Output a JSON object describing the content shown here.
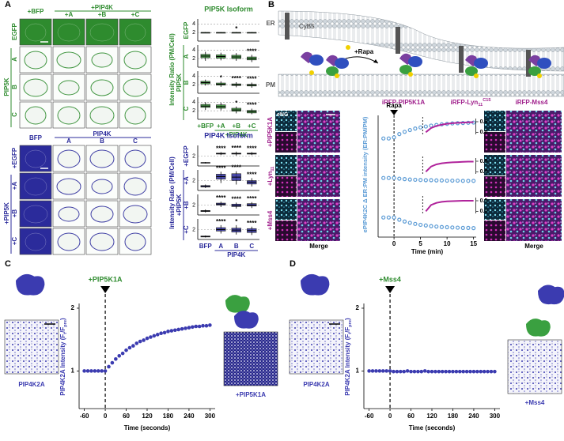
{
  "panel_a": {
    "label": "A",
    "top_images": {
      "columns": [
        "+BFP",
        "+A",
        "+B",
        "+C"
      ],
      "column_group": "+PIP4K",
      "rows": [
        "EGFP",
        "A",
        "B",
        "C"
      ],
      "row_group": "PIP5K"
    },
    "top_chart": {
      "type": "box",
      "title": "PIP5K Isoform",
      "ylabel": "Intensity Ratio (PM/Cell)",
      "categories": [
        "+BFP",
        "+A",
        "+B",
        "+C"
      ],
      "group_label": "+PIP4K",
      "row_group": "PIP5K",
      "ylim": [
        0,
        5
      ],
      "yticks": [
        2,
        4
      ],
      "color": "#2e8b2e",
      "rows": [
        {
          "name": "EGFP",
          "boxes": [
            [
              1.9,
              2,
              2,
              2,
              2.1
            ],
            [
              1.9,
              2,
              2,
              2,
              2.1
            ],
            [
              1.9,
              2,
              2,
              2,
              2.1
            ],
            [
              1.9,
              2,
              2,
              2,
              2.1
            ]
          ],
          "sig": [
            null,
            null,
            "*",
            null
          ]
        },
        {
          "name": "A",
          "boxes": [
            [
              1.5,
              2.2,
              2.6,
              3,
              3.6
            ],
            [
              1.6,
              2.1,
              2.5,
              2.9,
              3.4
            ],
            [
              1.5,
              2.0,
              2.4,
              2.8,
              3.3
            ],
            [
              1.2,
              1.7,
              2.0,
              2.4,
              2.9
            ]
          ],
          "sig": [
            null,
            null,
            null,
            "****"
          ]
        },
        {
          "name": "B",
          "boxes": [
            [
              1.8,
              2.2,
              2.5,
              2.8,
              3.2
            ],
            [
              1.5,
              1.9,
              2.1,
              2.4,
              2.8
            ],
            [
              1.4,
              1.8,
              2.0,
              2.2,
              2.6
            ],
            [
              1.3,
              1.7,
              1.9,
              2.1,
              2.5
            ]
          ],
          "sig": [
            null,
            "*",
            "****",
            "****"
          ]
        },
        {
          "name": "C",
          "boxes": [
            [
              2.2,
              2.8,
              3.1,
              3.5,
              4.0
            ],
            [
              2.1,
              2.6,
              3.0,
              3.4,
              3.9
            ],
            [
              1.4,
              1.9,
              2.2,
              2.6,
              3.0
            ],
            [
              1.2,
              1.5,
              1.8,
              2.1,
              2.5
            ]
          ],
          "sig": [
            null,
            null,
            "*",
            "****"
          ]
        }
      ]
    },
    "bottom_images": {
      "columns": [
        "BFP",
        "A",
        "B",
        "C"
      ],
      "column_group": "PIP4K",
      "rows": [
        "+EGFP",
        "+A",
        "+B",
        "+C"
      ],
      "row_group": "+PIP5K"
    },
    "bottom_chart": {
      "type": "box",
      "title": "PIP4K Isoform",
      "ylabel": "Intensity Ratio (PM/Cell)",
      "categories": [
        "BFP",
        "A",
        "B",
        "C"
      ],
      "group_label": "PIP4K",
      "row_group": "+PIP5K",
      "ylim": [
        0,
        4
      ],
      "yticks": [
        2
      ],
      "color": "#2b2b9b",
      "rows": [
        {
          "name": "+EGFP",
          "boxes": [
            [
              0.5,
              0.6,
              0.65,
              0.7,
              0.8
            ],
            [
              2.2,
              2.4,
              2.5,
              2.6,
              2.8
            ],
            [
              2.1,
              2.4,
              2.5,
              2.6,
              2.9
            ],
            [
              2.2,
              2.4,
              2.5,
              2.6,
              2.8
            ]
          ],
          "sig": [
            null,
            "****",
            "****",
            "****"
          ]
        },
        {
          "name": "+A",
          "boxes": [
            [
              0.5,
              0.7,
              0.8,
              1.0,
              1.2
            ],
            [
              1.5,
              2.3,
              2.8,
              3.3,
              3.8
            ],
            [
              1.2,
              2.0,
              2.7,
              3.4,
              3.9
            ],
            [
              0.8,
              1.3,
              1.7,
              2.0,
              2.5
            ]
          ],
          "sig": [
            null,
            "****",
            "****",
            "****"
          ]
        },
        {
          "name": "+B",
          "boxes": [
            [
              0.5,
              0.7,
              0.8,
              0.9,
              1.1
            ],
            [
              1.6,
              2.0,
              2.2,
              2.4,
              2.7
            ],
            [
              1.3,
              1.7,
              1.9,
              2.2,
              2.5
            ],
            [
              1.4,
              1.8,
              2.0,
              2.3,
              2.6
            ]
          ],
          "sig": [
            null,
            "****",
            "****",
            "****"
          ]
        },
        {
          "name": "+C",
          "boxes": [
            [
              0.4,
              0.5,
              0.6,
              0.7,
              0.8
            ],
            [
              1.2,
              1.7,
              2.0,
              2.4,
              2.9
            ],
            [
              1.0,
              1.5,
              1.9,
              2.3,
              2.9
            ],
            [
              0.9,
              1.4,
              1.8,
              2.2,
              2.6
            ]
          ],
          "sig": [
            null,
            "****",
            "*",
            "****"
          ]
        }
      ]
    }
  },
  "panel_b": {
    "label": "B",
    "diagram": {
      "er": "ER",
      "pm": "PM",
      "cyb5": "CyB5",
      "rapa": "+Rapa",
      "constructs": [
        [
          "iRFP-PIP5K1A"
        ],
        [
          "iRFP-Lyn",
          "11",
          "C15"
        ],
        [
          "iRFP-Mss4"
        ]
      ]
    },
    "channel_label": "eNG",
    "row_labels": [
      [
        "+PIP5K1A"
      ],
      [
        "+Lyn",
        "11"
      ],
      [
        "+Mss4"
      ]
    ],
    "merge_labels": [
      "Merge",
      "Merge"
    ],
    "chart": {
      "type": "line",
      "ylabel": "ePIP4K2C Δ ER:PM intensity (ER:PM/PM)",
      "xlabel": "Time (min)",
      "annotation": "Rapa",
      "color": "#5b9bd5",
      "inset_color": "#b0239b",
      "x": [
        -2,
        -1,
        0,
        1,
        2,
        3,
        4,
        5,
        6,
        7,
        8,
        9,
        10,
        11,
        12,
        13,
        14,
        15
      ],
      "xlim": [
        -3,
        15.5
      ],
      "xticks": [
        0,
        5,
        10,
        15
      ],
      "ylim": [
        -0.06,
        0.09
      ],
      "inset_x": [
        6,
        7,
        8,
        9,
        10,
        11,
        12,
        13,
        14,
        15
      ],
      "inset_ylim": [
        -0.1,
        0.65
      ],
      "inset_yticks": [
        0.5,
        {
          "value": 0,
          "label": "0.0"
        }
      ],
      "series": [
        {
          "values": [
            0,
            0,
            0.005,
            0.02,
            0.03,
            0.038,
            0.045,
            0.05,
            0.054,
            0.058,
            0.061,
            0.064,
            0.066,
            0.068,
            0.069,
            0.07,
            0.071,
            0.072
          ],
          "inset": [
            0,
            0.2,
            0.3,
            0.36,
            0.4,
            0.43,
            0.45,
            0.46,
            0.47,
            0.48
          ]
        },
        {
          "values": [
            0,
            0,
            0,
            -0.003,
            -0.005,
            -0.007,
            -0.008,
            -0.009,
            -0.01,
            -0.01,
            -0.011,
            -0.011,
            -0.012,
            -0.012,
            -0.012,
            -0.013,
            -0.013,
            -0.013
          ],
          "inset": [
            0,
            0.25,
            0.35,
            0.4,
            0.43,
            0.45,
            0.46,
            0.47,
            0.48,
            0.48
          ]
        },
        {
          "values": [
            0,
            0,
            0,
            -0.01,
            -0.018,
            -0.024,
            -0.029,
            -0.033,
            -0.036,
            -0.039,
            -0.041,
            -0.043,
            -0.044,
            -0.045,
            -0.046,
            -0.047,
            -0.047,
            -0.048
          ],
          "inset": [
            0,
            0.3,
            0.4,
            0.45,
            0.47,
            0.48,
            0.49,
            0.5,
            0.5,
            0.5
          ]
        }
      ]
    }
  },
  "chart_data": [
    {
      "label": "C",
      "type": "line",
      "annotation": "+PIP5K1A",
      "ylabel": [
        "PIP4K2A Intensity (F",
        "t",
        "/F",
        "pre",
        ")"
      ],
      "xlabel": "Time (seconds)",
      "color": "#3b3bb0",
      "image_labels": [
        "PIP4K2A",
        "+PIP5K1A"
      ],
      "x": [
        -60,
        -50,
        -40,
        -30,
        -20,
        -10,
        0,
        10,
        20,
        30,
        40,
        50,
        60,
        70,
        80,
        90,
        100,
        110,
        120,
        130,
        140,
        150,
        160,
        170,
        180,
        190,
        200,
        210,
        220,
        230,
        240,
        250,
        260,
        270,
        280,
        290,
        300
      ],
      "values": [
        1,
        1,
        1,
        1,
        1,
        1,
        1,
        1.068,
        1.13,
        1.19,
        1.24,
        1.28,
        1.33,
        1.37,
        1.4,
        1.44,
        1.47,
        1.49,
        1.52,
        1.54,
        1.56,
        1.58,
        1.6,
        1.61,
        1.63,
        1.64,
        1.65,
        1.66,
        1.67,
        1.68,
        1.69,
        1.7,
        1.71,
        1.71,
        1.72,
        1.72,
        1.73
      ],
      "xlim": [
        -75,
        315
      ],
      "xticks": [
        -60,
        0,
        60,
        120,
        180,
        240,
        300
      ],
      "ylim": [
        0.4,
        2.05
      ],
      "yticks": [
        1,
        2
      ]
    },
    {
      "label": "D",
      "type": "line",
      "annotation": "+Mss4",
      "ylabel": [
        "PIP4K2A Intensity (F",
        "t",
        "/F",
        "pre",
        ")"
      ],
      "xlabel": "Time (seconds)",
      "color": "#3b3bb0",
      "image_labels": [
        "PIP4K2A",
        "+Mss4"
      ],
      "x": [
        -60,
        -50,
        -40,
        -30,
        -20,
        -10,
        0,
        10,
        20,
        30,
        40,
        50,
        60,
        70,
        80,
        90,
        100,
        110,
        120,
        130,
        140,
        150,
        160,
        170,
        180,
        190,
        200,
        210,
        220,
        230,
        240,
        250,
        260,
        270,
        280,
        290,
        300
      ],
      "values": [
        1,
        1,
        1,
        1,
        1,
        1,
        1,
        0.99,
        0.99,
        0.99,
        0.99,
        1,
        0.99,
        0.99,
        0.99,
        0.99,
        1,
        0.99,
        0.99,
        0.99,
        0.99,
        0.99,
        0.99,
        0.99,
        0.99,
        0.99,
        0.99,
        0.99,
        0.99,
        0.99,
        0.99,
        0.99,
        0.99,
        0.99,
        0.99,
        0.99,
        0.99
      ],
      "xlim": [
        -75,
        315
      ],
      "xticks": [
        -60,
        0,
        60,
        120,
        180,
        240,
        300
      ],
      "ylim": [
        0.4,
        2.05
      ],
      "yticks": [
        1,
        2
      ]
    }
  ]
}
